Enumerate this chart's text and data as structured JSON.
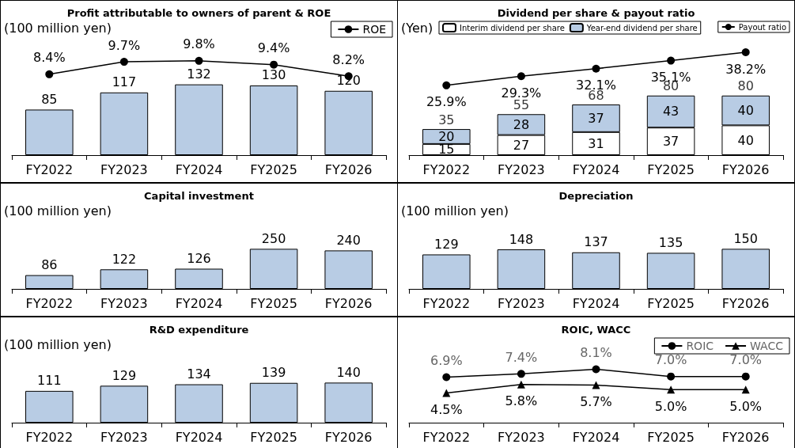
{
  "chart_data": [
    {
      "type": "bar",
      "ylabel": "(100 million yen)",
      "categories": [
        "FY2022",
        "FY2023",
        "FY2024",
        "FY2025",
        "FY2026"
      ],
      "data_labels": true,
      "color": "#b8cce4",
      "values": [
        85,
        117,
        132,
        130,
        120
      ]
    },
    {
      "type": "line",
      "title": "Profit attributable to owners of parent & ROE",
      "categories": [
        null,
        null,
        null,
        null,
        null
      ],
      "legend": "top right",
      "marker": "circle",
      "series": [
        {
          "name": "ROE",
          "color": "#000000",
          "values": [
            8.4,
            9.7,
            9.8,
            9.4,
            8.2
          ],
          "value_labels": [
            "8.4%",
            "9.7%",
            "9.8%",
            "9.4%",
            "8.2%"
          ]
        }
      ]
    },
    {
      "type": "bar",
      "ylabel": "(Yen)",
      "categories": [
        "FY2022",
        "FY2023",
        "FY2024",
        "FY2025",
        "FY2026"
      ],
      "stacked": true,
      "data_labels": true,
      "legend": "top",
      "totals": [
        "35",
        "55",
        "68",
        "80",
        "80"
      ],
      "series": [
        {
          "name": "Interim dividend per share",
          "color": "#ffffff",
          "values": [
            15,
            27,
            31,
            37,
            40
          ]
        },
        {
          "name": "Year-end dividend per share",
          "color": "#b8cce4",
          "values": [
            20,
            28,
            37,
            43,
            40
          ]
        }
      ]
    },
    {
      "type": "line",
      "title": "Dividend per share & payout ratio",
      "categories": [
        null,
        null,
        null,
        null,
        null
      ],
      "legend": "top right",
      "marker": "circle",
      "series": [
        {
          "name": "Payout ratio",
          "color": "#000000",
          "values": [
            25.9,
            29.3,
            32.1,
            35.1,
            38.2
          ],
          "value_labels": [
            "25.9%",
            "29.3%",
            "32.1%",
            "35.1%",
            "38.2%"
          ]
        }
      ]
    },
    {
      "type": "bar",
      "title": "Capital investment",
      "ylabel": "(100 million yen)",
      "categories": [
        "FY2022",
        "FY2023",
        "FY2024",
        "FY2025",
        "FY2026"
      ],
      "data_labels": true,
      "color": "#b8cce4",
      "values": [
        86,
        122,
        126,
        250,
        240
      ]
    },
    {
      "type": "bar",
      "title": "Depreciation",
      "ylabel": "(100 million yen)",
      "categories": [
        "FY2022",
        "FY2023",
        "FY2024",
        "FY2025",
        "FY2026"
      ],
      "data_labels": true,
      "color": "#b8cce4",
      "values": [
        129,
        148,
        137,
        135,
        150
      ]
    },
    {
      "type": "bar",
      "title": "R&D expenditure",
      "ylabel": "(100 million yen)",
      "categories": [
        "FY2022",
        "FY2023",
        "FY2024",
        "FY2025",
        "FY2026"
      ],
      "data_labels": true,
      "color": "#b8cce4",
      "values": [
        111,
        129,
        134,
        139,
        140
      ]
    },
    {
      "type": "line",
      "title": "ROIC, WACC",
      "categories": [
        "FY2022",
        "FY2023",
        "FY2024",
        "FY2025",
        "FY2026"
      ],
      "legend": "top right",
      "series": [
        {
          "name": "ROIC",
          "color": "#000000",
          "marker": "circle",
          "values": [
            6.9,
            7.4,
            8.1,
            7.0,
            7.0
          ],
          "value_labels": [
            "6.9%",
            "7.4%",
            "8.1%",
            "7.0%",
            "7.0%"
          ]
        },
        {
          "name": "WACC",
          "color": "#000000",
          "marker": "triangle",
          "values": [
            4.5,
            5.8,
            5.7,
            5.0,
            5.0
          ],
          "value_labels": [
            "4.5%",
            "5.8%",
            "5.7%",
            "5.0%",
            "5.0%"
          ]
        }
      ]
    }
  ]
}
